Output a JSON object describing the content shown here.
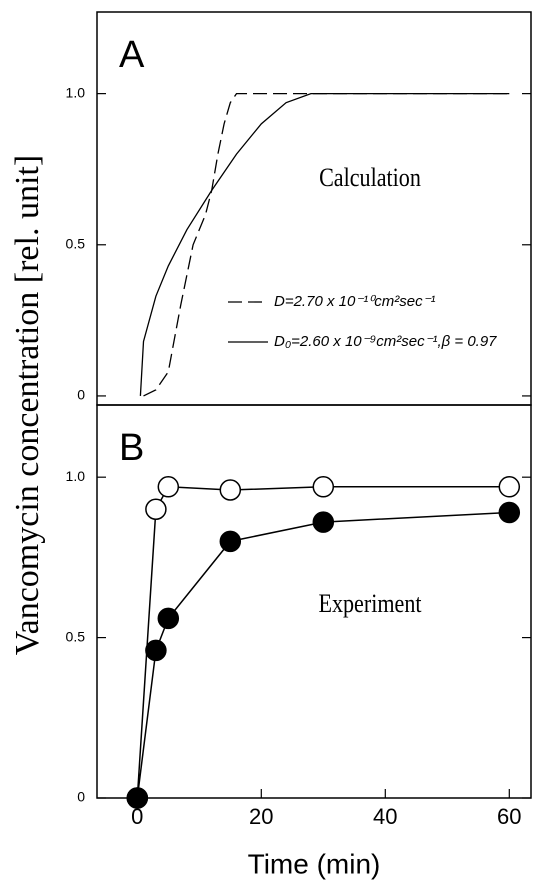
{
  "chart_data": [
    {
      "type": "line",
      "panel_label": "A",
      "annotation": "Calculation",
      "ylabel": "Vancomycin concentration [rel. unit]",
      "xlim": [
        -6.5,
        63.5
      ],
      "ylim": [
        -0.03,
        1.27
      ],
      "yticks": [
        0,
        0.5,
        {
          "value": 1,
          "label": "1.0"
        }
      ],
      "series": [
        {
          "name": "D=2.70 x 10⁻¹⁰cm²sec⁻¹",
          "color": "#000",
          "linestyle": "dashed",
          "x": [
            1,
            3,
            5,
            7,
            9,
            11,
            12,
            13,
            14,
            15,
            16,
            60
          ],
          "y": [
            0,
            0.02,
            0.08,
            0.3,
            0.5,
            0.6,
            0.68,
            0.8,
            0.9,
            0.97,
            1.0,
            1.0
          ]
        },
        {
          "name": "D₀=2.60 x 10⁻⁹cm²sec⁻¹,β = 0.97",
          "color": "#000",
          "linestyle": "solid",
          "x": [
            0.5,
            1,
            3,
            5,
            8,
            12,
            16,
            20,
            24,
            28,
            60
          ],
          "y": [
            0,
            0.18,
            0.33,
            0.43,
            0.55,
            0.68,
            0.8,
            0.9,
            0.97,
            1.0,
            1.0
          ]
        }
      ]
    },
    {
      "type": "scatter",
      "panel_label": "B",
      "annotation": "Experiment",
      "xlabel": "Time (min)",
      "xlim": [
        -6.5,
        63.5
      ],
      "ylim": [
        0,
        1.225
      ],
      "xticks": [
        0,
        20,
        40,
        60
      ],
      "yticks": [
        0,
        0.5,
        {
          "value": 1,
          "label": "1.0"
        }
      ],
      "series": [
        {
          "color": "#000",
          "marker": "open",
          "x": [
            0,
            3,
            5,
            15,
            30,
            60
          ],
          "y": [
            0,
            0.9,
            0.97,
            0.96,
            0.97,
            0.97
          ]
        },
        {
          "color": "#000",
          "marker": "filled",
          "x": [
            0,
            3,
            5,
            15,
            30,
            60
          ],
          "y": [
            0,
            0.46,
            0.56,
            0.8,
            0.86,
            0.89
          ]
        }
      ]
    }
  ]
}
